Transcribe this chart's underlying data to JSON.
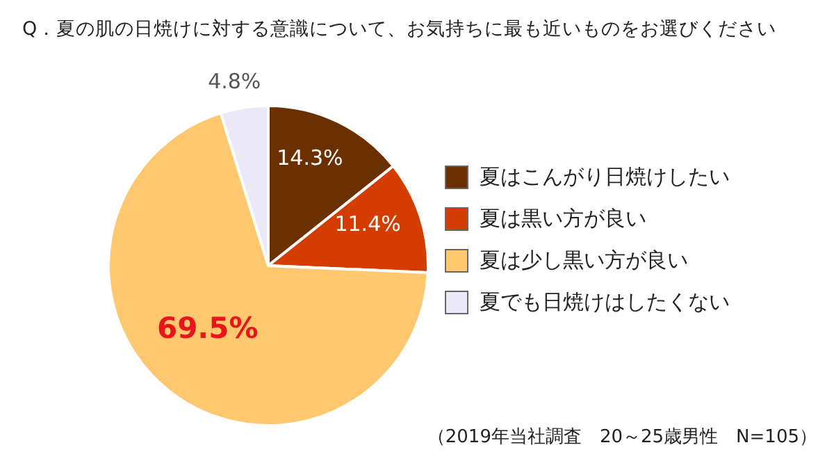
{
  "chart_data": {
    "type": "pie",
    "title": "Q．夏の肌の日焼けに対する意識について、お気持ちに最も近いものをお選びください",
    "categories": [
      "夏はこんがり日焼けしたい",
      "夏は黒い方が良い",
      "夏は少し黒い方が良い",
      "夏でも日焼けはしたくない"
    ],
    "values": [
      14.3,
      11.4,
      69.5,
      4.8
    ],
    "value_labels": [
      "14.3%",
      "11.4%",
      "69.5%",
      "4.8%"
    ],
    "colors": [
      "#6b3000",
      "#d53c00",
      "#ffc86e",
      "#ebe8f8"
    ],
    "legend": "right",
    "annotations": [
      "（2019年当社調査　20～25歳男性　N=105）"
    ]
  }
}
